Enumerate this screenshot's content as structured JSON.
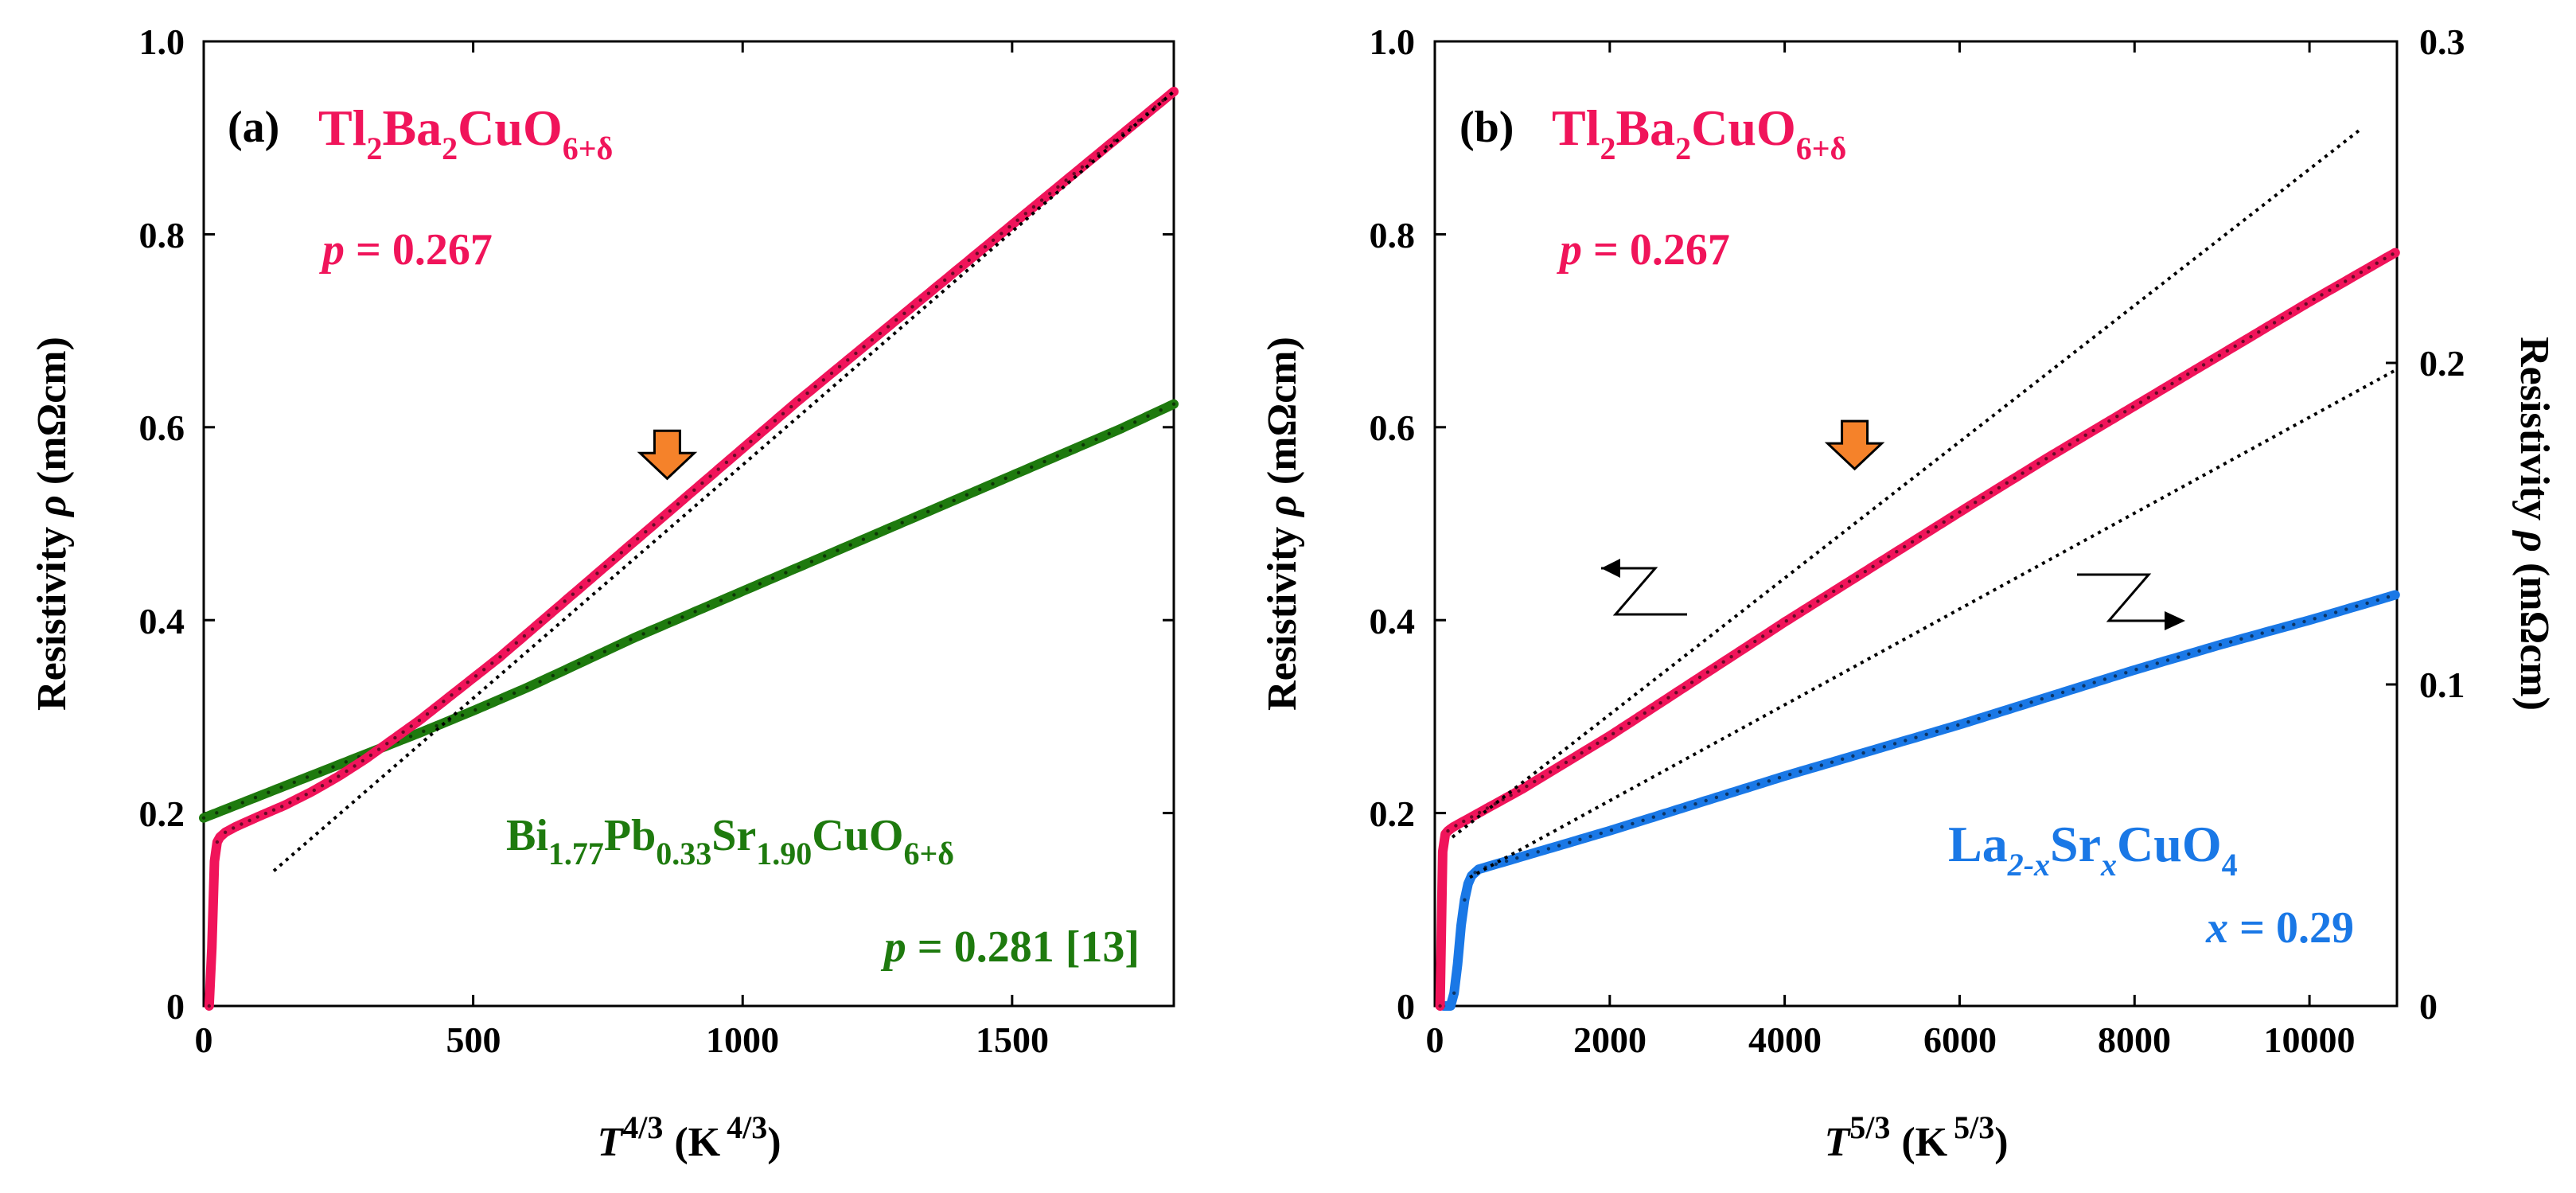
{
  "chart_data": [
    {
      "type": "line",
      "panel_label": "(a)",
      "xlabel_main": "T",
      "xlabel_exp": "4/3",
      "xlabel_unit": "(K",
      "xlabel_unit_exp": "4/3",
      "xlabel_close": ")",
      "ylabel_prefix": "Resistivity ",
      "ylabel_symbol": "ρ",
      "ylabel_unit": " (mΩcm)",
      "xlim": [
        0,
        1800
      ],
      "ylim": [
        0,
        1.0
      ],
      "xticks": [
        "0",
        "500",
        "1000",
        "1500"
      ],
      "xtick_values": [
        0,
        500,
        1000,
        1500
      ],
      "yticks": [
        "0",
        "0.2",
        "0.4",
        "0.6",
        "0.8",
        "1.0"
      ],
      "ytick_values": [
        0,
        0.2,
        0.4,
        0.6,
        0.8,
        1.0
      ],
      "series": [
        {
          "name": "Tl2Ba2CuO6+δ",
          "color": "#f0145a",
          "x": [
            10,
            12,
            15,
            17,
            20,
            25,
            30,
            40,
            60,
            100,
            150,
            200,
            250,
            300,
            350,
            400,
            450,
            500,
            550,
            600,
            700,
            800,
            900,
            1000,
            1100,
            1200,
            1300,
            1400,
            1500,
            1600,
            1700,
            1800
          ],
          "y": [
            0.0,
            0.02,
            0.06,
            0.11,
            0.15,
            0.17,
            0.175,
            0.18,
            0.186,
            0.196,
            0.208,
            0.222,
            0.238,
            0.256,
            0.276,
            0.296,
            0.318,
            0.34,
            0.362,
            0.386,
            0.434,
            0.482,
            0.53,
            0.578,
            0.626,
            0.672,
            0.718,
            0.764,
            0.81,
            0.856,
            0.902,
            0.948
          ]
        },
        {
          "name": "Bi1.77Pb0.33Sr1.90CuO6+δ",
          "color": "#1e7a0e",
          "x": [
            0,
            100,
            200,
            300,
            400,
            500,
            600,
            700,
            800,
            900,
            1000,
            1100,
            1200,
            1300,
            1400,
            1500,
            1600,
            1700,
            1800
          ],
          "y": [
            0.195,
            0.217,
            0.239,
            0.261,
            0.283,
            0.306,
            0.33,
            0.356,
            0.382,
            0.406,
            0.43,
            0.454,
            0.478,
            0.502,
            0.526,
            0.55,
            0.574,
            0.598,
            0.624
          ]
        }
      ],
      "fit_line": {
        "x": [
          130,
          1800
        ],
        "y": [
          0.14,
          0.948
        ]
      },
      "arrow_at": {
        "x": 860,
        "y": 0.56
      },
      "annotations": {
        "compound1": {
          "base1": "Tl",
          "sub1": "2",
          "base2": "Ba",
          "sub2": "2",
          "base3": "CuO",
          "sub3": "6+δ"
        },
        "doping1": {
          "var": "p",
          "value": " = 0.267"
        },
        "compound2": {
          "base1": "Bi",
          "sub1": "1.77",
          "base2": "Pb",
          "sub2": "0.33",
          "base3": "Sr",
          "sub3": "1.90",
          "base4": "CuO",
          "sub4": "6+δ"
        },
        "doping2": {
          "var": "p",
          "value": " = 0.281 [13]"
        }
      }
    },
    {
      "type": "line",
      "panel_label": "(b)",
      "xlabel_main": "T",
      "xlabel_exp": "5/3",
      "xlabel_unit": "(K",
      "xlabel_unit_exp": "5/3",
      "xlabel_close": ")",
      "ylabel_prefix": "Resistivity ",
      "ylabel_symbol": "ρ",
      "ylabel_unit": " (mΩcm)",
      "y2label_prefix": "Resistivity ",
      "y2label_symbol": "ρ",
      "y2label_unit": " (mΩcm)",
      "xlim": [
        0,
        11000
      ],
      "ylim": [
        0,
        1.0
      ],
      "y2lim": [
        0,
        0.3
      ],
      "xticks": [
        "0",
        "2000",
        "4000",
        "6000",
        "8000",
        "10000"
      ],
      "xtick_values": [
        0,
        2000,
        4000,
        6000,
        8000,
        10000
      ],
      "yticks": [
        "0",
        "0.2",
        "0.4",
        "0.6",
        "0.8",
        "1.0"
      ],
      "ytick_values": [
        0,
        0.2,
        0.4,
        0.6,
        0.8,
        1.0
      ],
      "y2ticks": [
        "0",
        "0.1",
        "0.2",
        "0.3"
      ],
      "y2tick_values": [
        0,
        0.1,
        0.2,
        0.3
      ],
      "series": [
        {
          "name": "Tl2Ba2CuO6+δ",
          "axis": "left",
          "color": "#f0145a",
          "x": [
            60,
            70,
            80,
            90,
            100,
            130,
            200,
            500,
            1000,
            2000,
            3000,
            4000,
            5000,
            6000,
            7000,
            8000,
            9000,
            10000,
            11000
          ],
          "y": [
            0.0,
            0.05,
            0.12,
            0.16,
            0.175,
            0.18,
            0.185,
            0.2,
            0.225,
            0.28,
            0.339,
            0.398,
            0.455,
            0.512,
            0.568,
            0.622,
            0.676,
            0.73,
            0.782
          ]
        },
        {
          "name": "La2-xSrxCuO4",
          "axis": "right",
          "color": "#1a78e6",
          "x": [
            100,
            200,
            250,
            300,
            350,
            400,
            500,
            1000,
            2000,
            3000,
            4000,
            5000,
            6000,
            7000,
            8000,
            9000,
            10000,
            11000
          ],
          "y": [
            0.0,
            0.0,
            0.01,
            0.025,
            0.035,
            0.04,
            0.0425,
            0.0465,
            0.0545,
            0.063,
            0.0715,
            0.0795,
            0.0875,
            0.096,
            0.1045,
            0.1125,
            0.12,
            0.128
          ]
        }
      ],
      "fit_line_left": {
        "x": [
          200,
          10600
        ],
        "y": [
          0.175,
          0.91
        ]
      },
      "fit_line_right": {
        "x": [
          400,
          11000
        ],
        "y": [
          0.04,
          0.198
        ]
      },
      "arrow_at": {
        "x": 4800,
        "y": 0.57
      },
      "annotations": {
        "compound1": {
          "base1": "Tl",
          "sub1": "2",
          "base2": "Ba",
          "sub2": "2",
          "base3": "CuO",
          "sub3": "6+δ"
        },
        "doping1": {
          "var": "p",
          "value": " = 0.267"
        },
        "compound2": {
          "base1": "La",
          "sub1": "2-x",
          "base2": "Sr",
          "sub2": "x",
          "base3": "CuO",
          "sub3": "4"
        },
        "doping2": {
          "var": "x",
          "value": " = 0.29"
        }
      }
    }
  ]
}
